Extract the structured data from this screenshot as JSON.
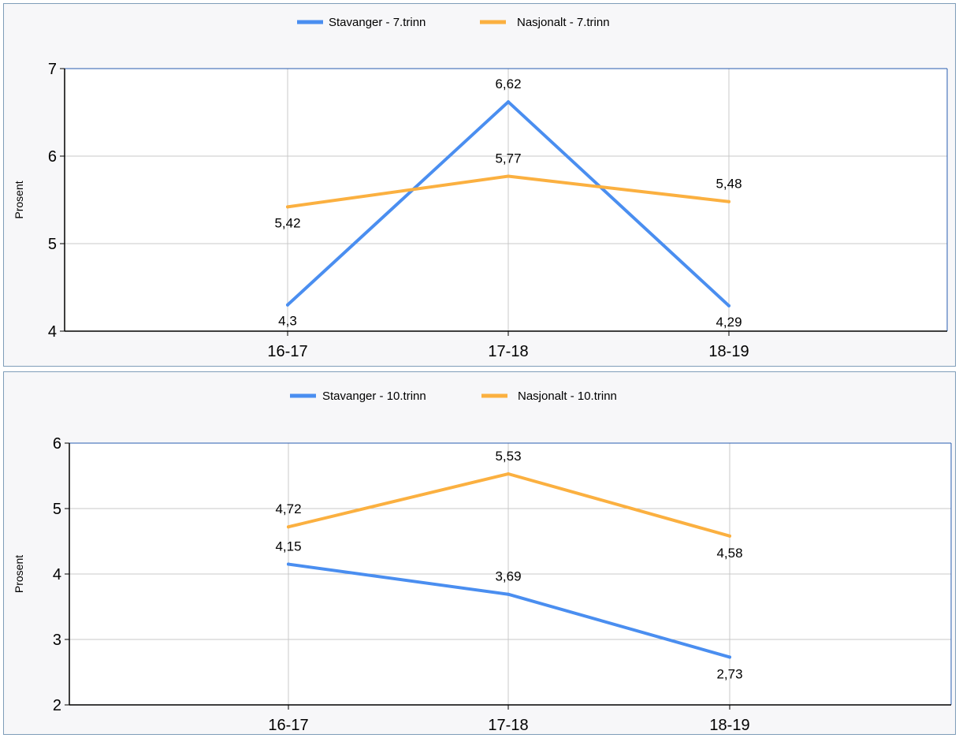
{
  "chart_data": [
    {
      "type": "line",
      "categories": [
        "16-17",
        "17-18",
        "18-19"
      ],
      "series": [
        {
          "name": "Stavanger - 7.trinn",
          "values": [
            4.3,
            6.62,
            4.29
          ],
          "labels": [
            "4,3",
            "6,62",
            "4,29"
          ],
          "color": "#4a8ef0"
        },
        {
          "name": "Nasjonalt - 7.trinn",
          "values": [
            5.42,
            5.77,
            5.48
          ],
          "labels": [
            "5,42",
            "5,77",
            "5,48"
          ],
          "color": "#fbb040"
        }
      ],
      "ylabel": "Prosent",
      "ylim": [
        4,
        7
      ],
      "yticks": [
        4,
        5,
        6,
        7
      ],
      "grid": true,
      "legend": "top-center"
    },
    {
      "type": "line",
      "categories": [
        "16-17",
        "17-18",
        "18-19"
      ],
      "series": [
        {
          "name": "Stavanger - 10.trinn",
          "values": [
            4.15,
            3.69,
            2.73
          ],
          "labels": [
            "4,15",
            "3,69",
            "2,73"
          ],
          "color": "#4a8ef0"
        },
        {
          "name": "Nasjonalt - 10.trinn",
          "values": [
            4.72,
            5.53,
            4.58
          ],
          "labels": [
            "4,72",
            "5,53",
            "4,58"
          ],
          "color": "#fbb040"
        }
      ],
      "ylabel": "Prosent",
      "ylim": [
        2,
        6
      ],
      "yticks": [
        2,
        3,
        4,
        5,
        6
      ],
      "grid": true,
      "legend": "top-center"
    }
  ]
}
